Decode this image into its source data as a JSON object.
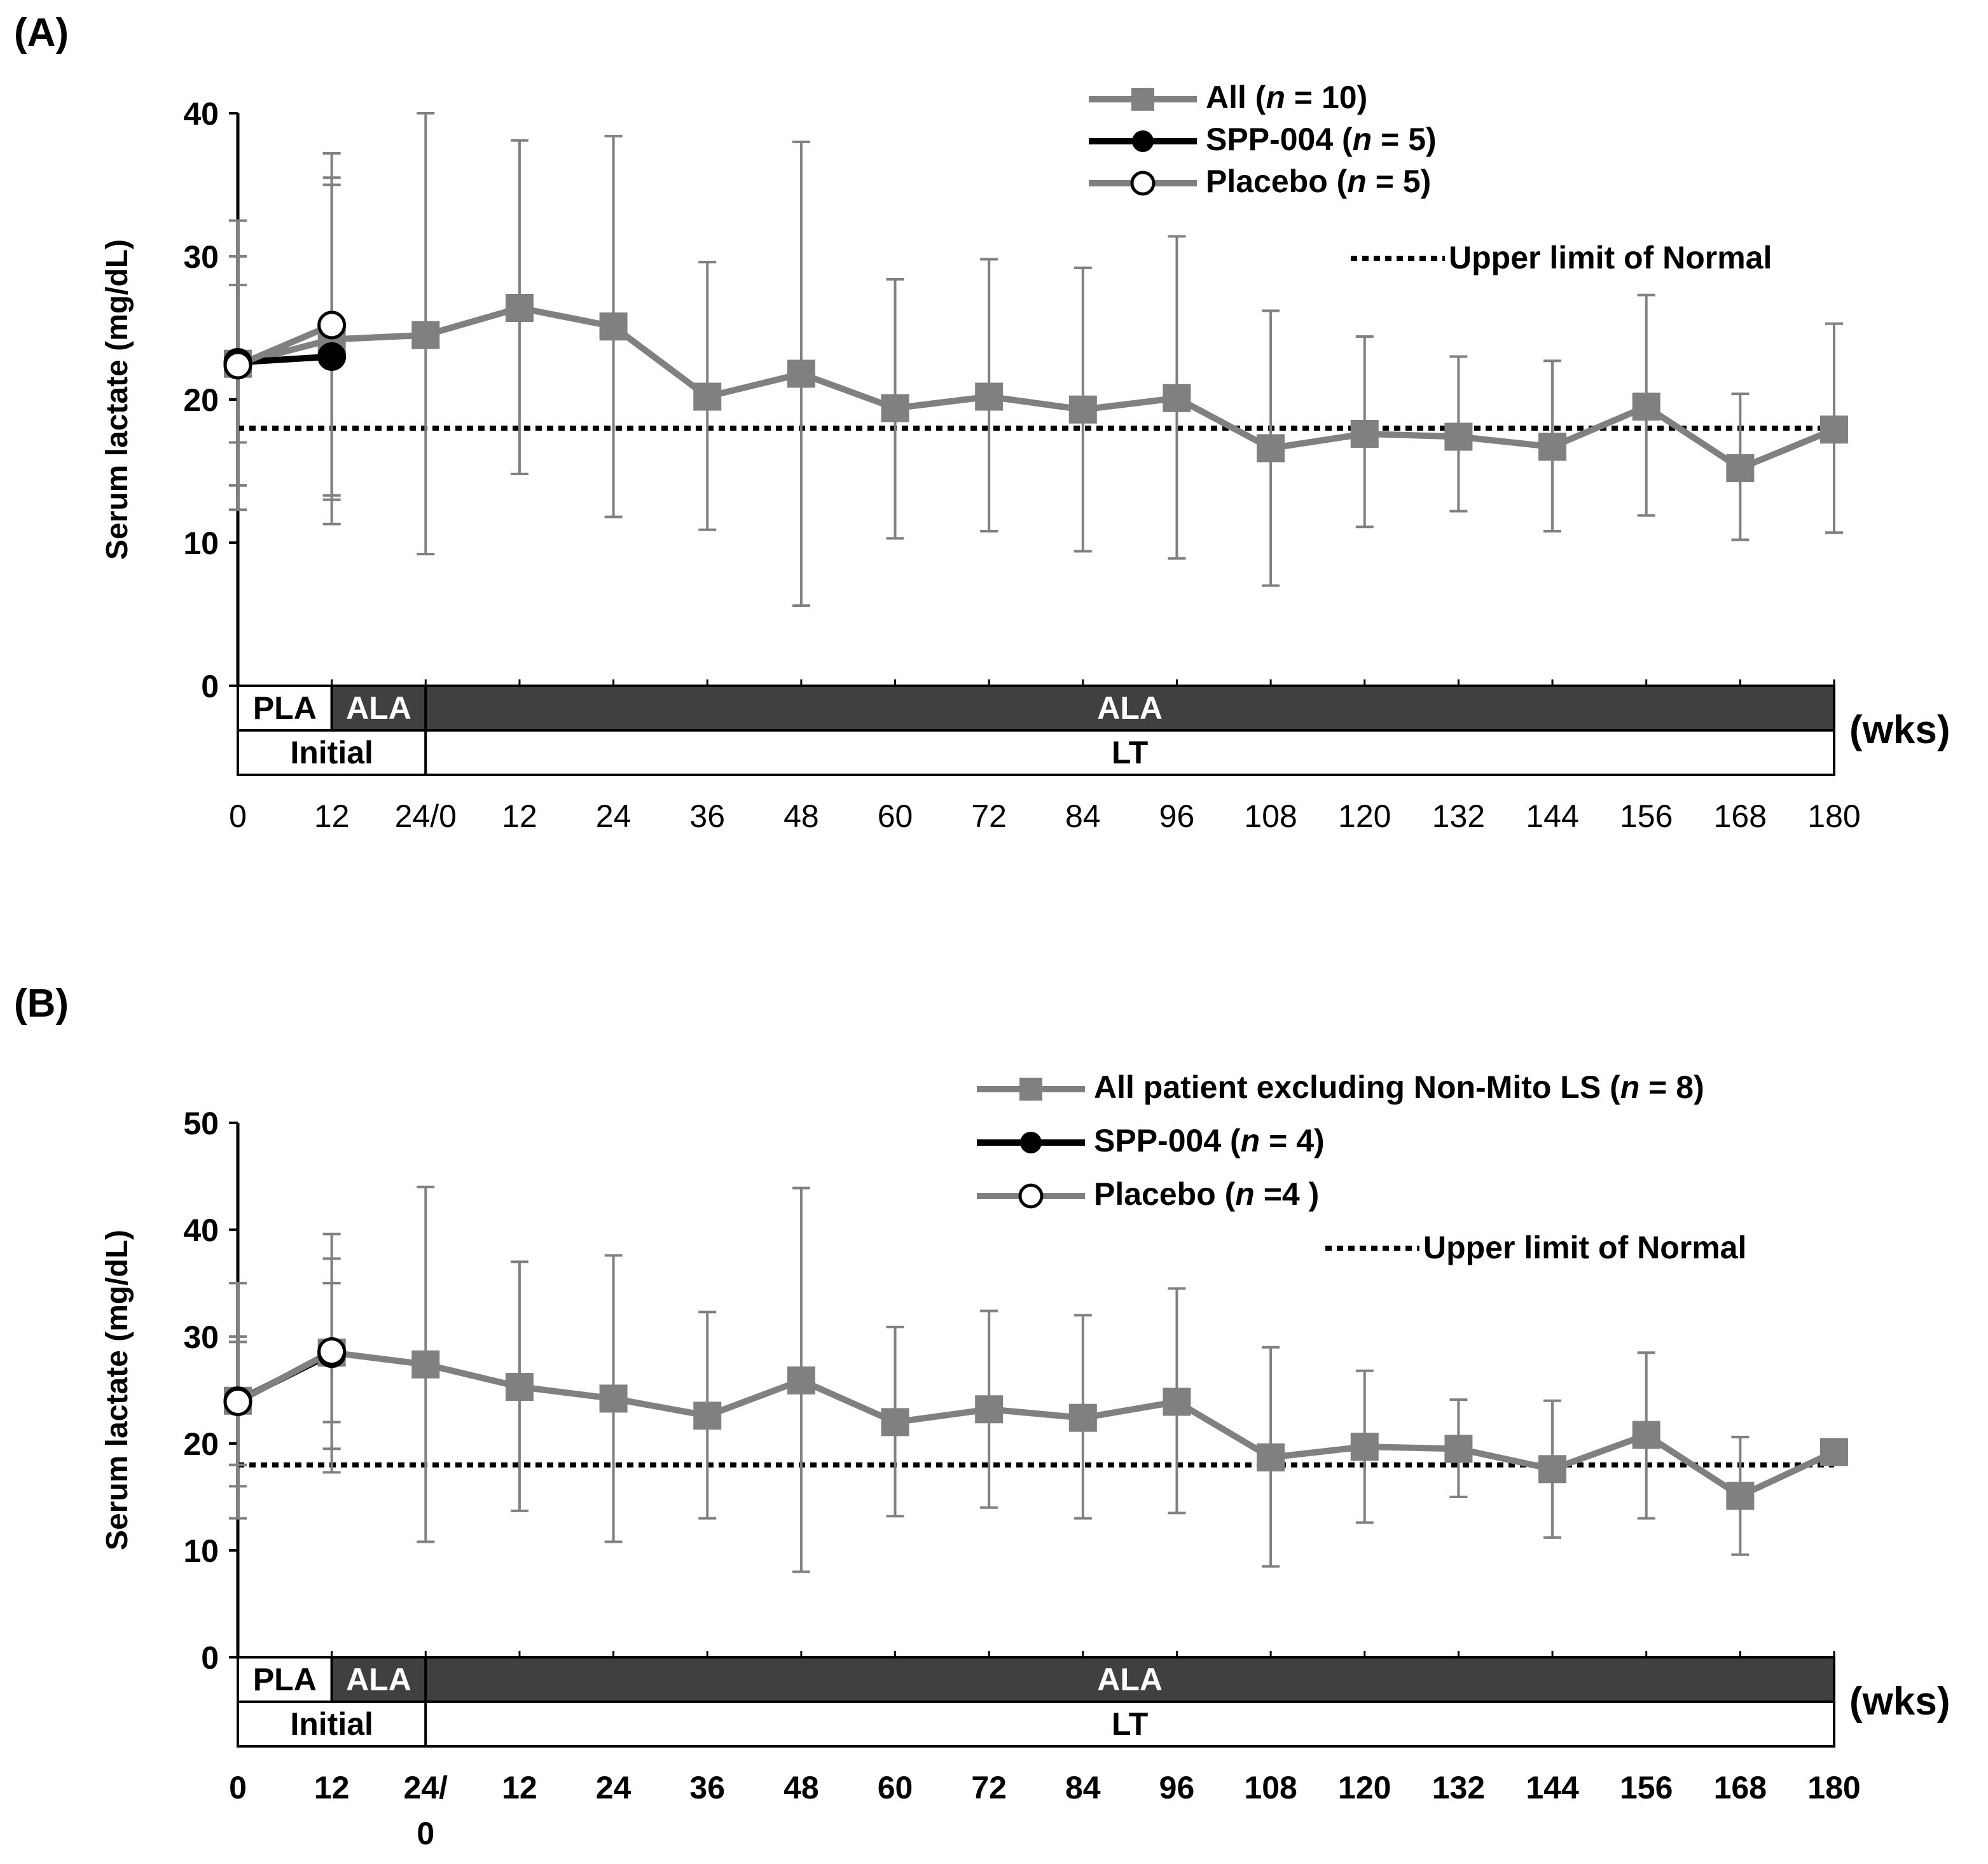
{
  "colors": {
    "all": "#808080",
    "spp": "#000000",
    "placebo": "#808080",
    "phase_dark": "#404040",
    "ref_line": "#000000"
  },
  "chart_data": [
    {
      "panel": "(A)",
      "type": "line",
      "ylabel": "Serum lactate (mg/dL)",
      "ylim": [
        0,
        40
      ],
      "yticks": [
        0,
        10,
        20,
        30,
        40
      ],
      "x_ticks": [
        {
          "week": 0,
          "label": "0"
        },
        {
          "week": 12,
          "label": "12"
        },
        {
          "week": 24,
          "label": "24/0"
        },
        {
          "week": 36,
          "label": "12"
        },
        {
          "week": 48,
          "label": "24"
        },
        {
          "week": 60,
          "label": "36"
        },
        {
          "week": 72,
          "label": "48"
        },
        {
          "week": 84,
          "label": "60"
        },
        {
          "week": 96,
          "label": "72"
        },
        {
          "week": 108,
          "label": "84"
        },
        {
          "week": 120,
          "label": "96"
        },
        {
          "week": 132,
          "label": "108"
        },
        {
          "week": 144,
          "label": "120"
        },
        {
          "week": 156,
          "label": "132"
        },
        {
          "week": 168,
          "label": "144"
        },
        {
          "week": 180,
          "label": "156"
        },
        {
          "week": 192,
          "label": "168"
        },
        {
          "week": 204,
          "label": "180"
        }
      ],
      "x_unit": "(wks)",
      "reference_line": {
        "value": 18,
        "label": "Upper limit of Normal"
      },
      "phase_bar": {
        "top": [
          {
            "label": "PLA",
            "from": 0,
            "to": 12,
            "style": "light"
          },
          {
            "label": "ALA",
            "from": 12,
            "to": 24,
            "style": "dark"
          },
          {
            "label": "ALA",
            "from": 24,
            "to": 204,
            "style": "dark"
          }
        ],
        "bottom": [
          {
            "label": "Initial",
            "from": 0,
            "to": 24
          },
          {
            "label": "LT",
            "from": 24,
            "to": 204
          }
        ]
      },
      "series": [
        {
          "name_prefix": "All (",
          "name_n": "n",
          "name_suffix": " = 10)",
          "marker": "square",
          "x": [
            0,
            12,
            24,
            36,
            48,
            60,
            72,
            84,
            96,
            108,
            120,
            132,
            144,
            156,
            168,
            180,
            192,
            204
          ],
          "y": [
            22.5,
            24.2,
            24.5,
            26.4,
            25.1,
            20.2,
            21.8,
            19.4,
            20.2,
            19.3,
            20.1,
            16.6,
            17.6,
            17.4,
            16.7,
            19.5,
            15.2,
            17.9
          ],
          "err_low": [
            12.3,
            11.3,
            9.2,
            14.8,
            11.8,
            10.9,
            5.6,
            10.3,
            10.8,
            9.4,
            8.9,
            7.0,
            11.1,
            12.2,
            10.8,
            11.9,
            10.2,
            10.7
          ],
          "err_high": [
            32.5,
            37.2,
            40.0,
            38.1,
            38.4,
            29.6,
            38.0,
            28.4,
            29.8,
            29.2,
            31.4,
            26.2,
            24.4,
            23.0,
            22.7,
            27.3,
            20.4,
            25.3
          ]
        },
        {
          "name_prefix": "SPP-004 (",
          "name_n": "n",
          "name_suffix": " = 5)",
          "marker": "filled-circle",
          "x": [
            0,
            12
          ],
          "y": [
            22.6,
            23.0
          ],
          "err_low": [
            17.0,
            13.0
          ],
          "err_high": [
            28.0,
            35.0
          ]
        },
        {
          "name_prefix": "Placebo (",
          "name_n": "n",
          "name_suffix": " = 5)",
          "marker": "open-circle",
          "x": [
            0,
            12
          ],
          "y": [
            22.4,
            25.2
          ],
          "err_low": [
            14.0,
            13.3
          ],
          "err_high": [
            30.0,
            35.5
          ]
        }
      ]
    },
    {
      "panel": "(B)",
      "type": "line",
      "ylabel": "Serum lactate (mg/dL)",
      "ylim": [
        0,
        50
      ],
      "yticks": [
        0,
        10,
        20,
        30,
        40,
        50
      ],
      "x_ticks": [
        {
          "week": 0,
          "label": "0"
        },
        {
          "week": 12,
          "label": "12"
        },
        {
          "week": 24,
          "label": "24/"
        },
        {
          "week": 36,
          "label": "12"
        },
        {
          "week": 48,
          "label": "24"
        },
        {
          "week": 60,
          "label": "36"
        },
        {
          "week": 72,
          "label": "48"
        },
        {
          "week": 84,
          "label": "60"
        },
        {
          "week": 96,
          "label": "72"
        },
        {
          "week": 108,
          "label": "84"
        },
        {
          "week": 120,
          "label": "96"
        },
        {
          "week": 132,
          "label": "108"
        },
        {
          "week": 144,
          "label": "120"
        },
        {
          "week": 156,
          "label": "132"
        },
        {
          "week": 168,
          "label": "144"
        },
        {
          "week": 180,
          "label": "156"
        },
        {
          "week": 192,
          "label": "168"
        },
        {
          "week": 204,
          "label": "180"
        }
      ],
      "x_tick_extra": {
        "week": 24,
        "label": "0"
      },
      "x_unit": "(wks)",
      "reference_line": {
        "value": 18,
        "label": "Upper limit of Normal"
      },
      "phase_bar": {
        "top": [
          {
            "label": "PLA",
            "from": 0,
            "to": 12,
            "style": "light"
          },
          {
            "label": "ALA",
            "from": 12,
            "to": 24,
            "style": "dark"
          },
          {
            "label": "ALA",
            "from": 24,
            "to": 204,
            "style": "dark"
          }
        ],
        "bottom": [
          {
            "label": "Initial",
            "from": 0,
            "to": 24
          },
          {
            "label": "LT",
            "from": 24,
            "to": 204
          }
        ]
      },
      "series": [
        {
          "name_prefix": "All patient excluding Non-Mito LS (",
          "name_n": "n",
          "name_suffix": " = 8)",
          "marker": "square",
          "x": [
            0,
            12,
            24,
            36,
            48,
            60,
            72,
            84,
            96,
            108,
            120,
            132,
            144,
            156,
            168,
            180,
            192,
            204
          ],
          "y": [
            24.0,
            28.5,
            27.4,
            25.3,
            24.2,
            22.6,
            25.9,
            22.0,
            23.2,
            22.4,
            23.9,
            18.7,
            19.7,
            19.5,
            17.6,
            20.8,
            15.1,
            19.2
          ],
          "err_low": [
            13.0,
            17.3,
            10.8,
            13.7,
            10.8,
            13.0,
            8.0,
            13.2,
            14.0,
            13.0,
            13.5,
            8.5,
            12.6,
            15.0,
            11.2,
            13.0,
            9.6,
            null
          ],
          "err_high": [
            35.0,
            39.6,
            44.0,
            37.0,
            37.6,
            32.3,
            43.9,
            30.9,
            32.4,
            32.0,
            34.5,
            29.0,
            26.8,
            24.1,
            24.0,
            28.5,
            20.6,
            null
          ]
        },
        {
          "name_prefix": "SPP-004 (",
          "name_n": "n",
          "name_suffix": " = 4)",
          "marker": "filled-circle",
          "x": [
            0,
            12
          ],
          "y": [
            24.0,
            28.4
          ],
          "err_low": [
            16.0,
            19.5
          ],
          "err_high": [
            29.5,
            37.3
          ]
        },
        {
          "name_prefix": "Placebo (",
          "name_n": "n",
          "name_suffix": " =4 )",
          "marker": "open-circle",
          "x": [
            0,
            12
          ],
          "y": [
            23.9,
            28.6
          ],
          "err_low": [
            18.0,
            22.0
          ],
          "err_high": [
            30.0,
            35.0
          ]
        }
      ]
    }
  ]
}
